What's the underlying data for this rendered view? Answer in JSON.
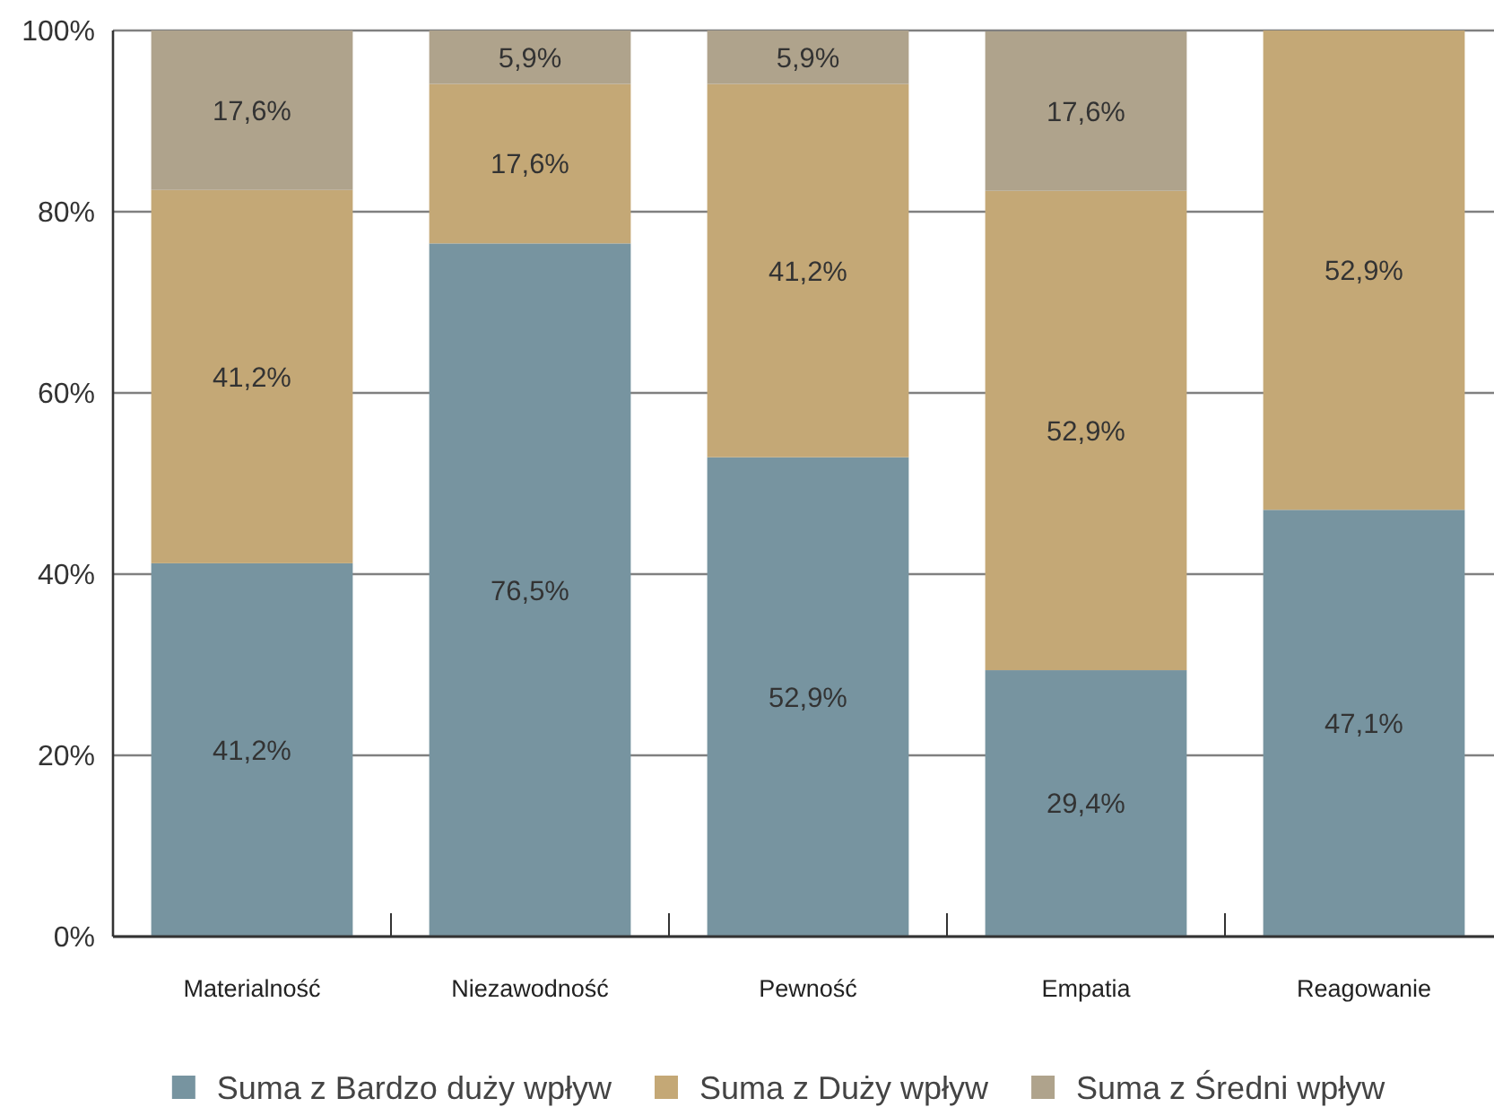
{
  "chart_data": {
    "type": "bar",
    "stacked": true,
    "categories": [
      "Materialność",
      "Niezawodność",
      "Pewność",
      "Empatia",
      "Reagowanie"
    ],
    "series": [
      {
        "name": "Suma z Bardzo duży wpływ",
        "color": "#7794a0",
        "values": [
          41.2,
          76.5,
          52.9,
          29.4,
          47.1
        ],
        "value_labels": [
          "41,2%",
          "76,5%",
          "52,9%",
          "29,4%",
          "47,1%"
        ]
      },
      {
        "name": "Suma z Duży wpływ",
        "color": "#c4a876",
        "values": [
          41.2,
          17.6,
          41.2,
          52.9,
          52.9
        ],
        "value_labels": [
          "41,2%",
          "17,6%",
          "41,2%",
          "52,9%",
          "52,9%"
        ]
      },
      {
        "name": "Suma z Średni wpływ",
        "color": "#afa38c",
        "values": [
          17.6,
          5.9,
          5.9,
          17.6,
          null
        ],
        "value_labels": [
          "17,6%",
          "5,9%",
          "5,9%",
          "17,6%",
          null
        ]
      }
    ],
    "ylim": [
      0,
      100
    ],
    "yticks": [
      {
        "value": 0,
        "label": "0%"
      },
      {
        "value": 20,
        "label": "20%"
      },
      {
        "value": 40,
        "label": "40%"
      },
      {
        "value": 60,
        "label": "60%"
      },
      {
        "value": 80,
        "label": "80%"
      },
      {
        "value": 100,
        "label": "100%"
      }
    ],
    "grid": "y",
    "legend": "bottom"
  }
}
